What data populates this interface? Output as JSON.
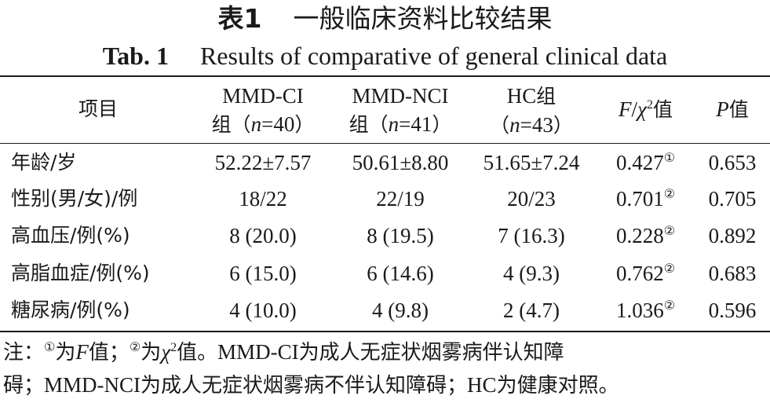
{
  "title_cn": {
    "label": "表1",
    "text": "一般临床资料比较结果"
  },
  "title_en": {
    "label": "Tab. 1",
    "text": "Results of comparative of general clinical data"
  },
  "header": {
    "item": "项目",
    "mmd_ci_line1": "MMD-CI",
    "mmd_ci_line2_cn": "组（",
    "mmd_ci_n": "n",
    "mmd_ci_eq": "=40",
    "mmd_ci_close": "）",
    "mmd_nci_line1": "MMD-NCI",
    "mmd_nci_line2_cn": "组（",
    "mmd_nci_n": "n",
    "mmd_nci_eq": "=41",
    "mmd_nci_close": "）",
    "hc_line1": "HC",
    "hc_line1_cn": "组",
    "hc_open": "（",
    "hc_n": "n",
    "hc_eq": "=43",
    "hc_close": "）",
    "stat_f": "F",
    "stat_slash": "/",
    "stat_chi": "χ",
    "stat_sq": "2",
    "stat_val": "值",
    "p": "P",
    "p_val": "值"
  },
  "rows": [
    {
      "label": "年龄/岁",
      "mmd_ci": "52.22±7.57",
      "mmd_nci": "50.61±8.80",
      "hc": "51.65±7.24",
      "stat": "0.427",
      "mark": "①",
      "p": "0.653"
    },
    {
      "label": "性别(男/女)/例",
      "mmd_ci": "18/22",
      "mmd_nci": "22/19",
      "hc": "20/23",
      "stat": "0.701",
      "mark": "②",
      "p": "0.705"
    },
    {
      "label": "高血压/例(%)",
      "mmd_ci": "8 (20.0)",
      "mmd_nci": "8 (19.5)",
      "hc": "7 (16.3)",
      "stat": "0.228",
      "mark": "②",
      "p": "0.892"
    },
    {
      "label": "高脂血症/例(%)",
      "mmd_ci": "6 (15.0)",
      "mmd_nci": "6 (14.6)",
      "hc": "4 (9.3)",
      "stat": "0.762",
      "mark": "②",
      "p": "0.683"
    },
    {
      "label": "糖尿病/例(%)",
      "mmd_ci": "4 (10.0)",
      "mmd_nci": "4 (9.8)",
      "hc": "2 (4.7)",
      "stat": "1.036",
      "mark": "②",
      "p": "0.596"
    }
  ],
  "note": {
    "prefix": "注：",
    "m1": "①",
    "m1_text": "为",
    "f": "F",
    "f_text": "值；",
    "m2": "②",
    "m2_text": "为",
    "chi": "χ",
    "chi_sq": "2",
    "chi_text": "值。",
    "line1_rest_a": "MMD-CI",
    "line1_rest_b": "为成人无症状烟雾病伴认知障",
    "line2_a": "碍；",
    "line2_b": "MMD-NCI",
    "line2_c": "为成人无症状烟雾病不伴认知障碍；",
    "line2_d": "HC",
    "line2_e": "为健康对照。"
  }
}
